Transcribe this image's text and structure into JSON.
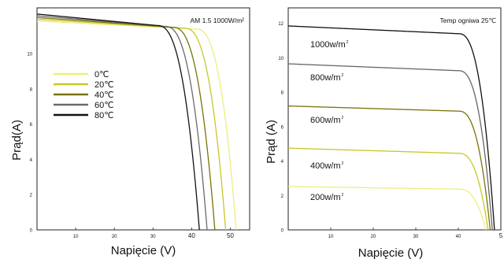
{
  "chart_data": [
    {
      "type": "line",
      "annotation": "AM 1.5 1000W/m²",
      "xlabel": "Napięcie (V)",
      "ylabel": "Prąd(A)",
      "xlim": [
        0,
        55
      ],
      "ylim": [
        0,
        12.6
      ],
      "xticks": [
        "10",
        "20",
        "30",
        "40",
        "50"
      ],
      "yticks": [
        "0",
        "2",
        "4",
        "6",
        "8",
        "10"
      ],
      "legend_position": "middle-left",
      "series": [
        {
          "name": "0℃",
          "color": "#eeee80",
          "isc": 11.85,
          "voc": 51.5,
          "knee": 41,
          "droop": 0.45
        },
        {
          "name": "20℃",
          "color": "#c9c728",
          "isc": 11.95,
          "voc": 48.8,
          "knee": 38,
          "droop": 0.5
        },
        {
          "name": "40℃",
          "color": "#7a7208",
          "isc": 12.05,
          "voc": 46.0,
          "knee": 35,
          "droop": 0.55
        },
        {
          "name": "60℃",
          "color": "#6a6a6a",
          "isc": 12.15,
          "voc": 44.0,
          "knee": 33,
          "droop": 0.6
        },
        {
          "name": "80℃",
          "color": "#111111",
          "isc": 12.25,
          "voc": 42.0,
          "knee": 31,
          "droop": 0.65
        }
      ]
    },
    {
      "type": "line",
      "annotation": "Temp ogniwa 25℃",
      "xlabel": "Napięcie (V)",
      "ylabel": "Prąd (A)",
      "xlim": [
        0,
        50
      ],
      "ylim": [
        0,
        12.9
      ],
      "xticks": [
        "10",
        "20",
        "30",
        "40",
        "5"
      ],
      "yticks": [
        "0",
        "2",
        "4",
        "6",
        "8",
        "10",
        "12"
      ],
      "series": [
        {
          "name": "1000w/m",
          "sup": "2",
          "color": "#111111",
          "isc": 11.85,
          "voc": 48.5,
          "knee": 40,
          "droop": 0.45
        },
        {
          "name": "800w/m",
          "sup": "2",
          "color": "#666666",
          "isc": 9.65,
          "voc": 48.0,
          "knee": 40,
          "droop": 0.4
        },
        {
          "name": "600w/m",
          "sup": "2",
          "color": "#7a7208",
          "isc": 7.2,
          "voc": 47.5,
          "knee": 40,
          "droop": 0.3
        },
        {
          "name": "400w/m",
          "sup": "2",
          "color": "#c9c728",
          "isc": 4.75,
          "voc": 47.0,
          "knee": 40,
          "droop": 0.3
        },
        {
          "name": "200w/m",
          "sup": "2",
          "color": "#eeee80",
          "isc": 2.52,
          "voc": 46.5,
          "knee": 40,
          "droop": 0.15
        }
      ]
    }
  ]
}
